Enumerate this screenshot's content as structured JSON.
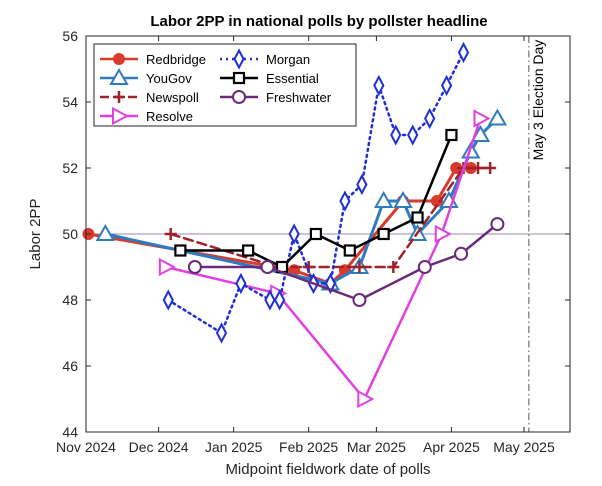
{
  "chart_data": {
    "type": "line",
    "title": "Labor 2PP in national polls by pollster headline",
    "xlabel": "Midpoint fieldwork date of polls",
    "ylabel": "Labor 2PP",
    "xlim": [
      "2024-11-01",
      "2025-05-20"
    ],
    "ylim": [
      44,
      56
    ],
    "x_ticks": [
      {
        "date": "2024-11-01",
        "label": "Nov 2024"
      },
      {
        "date": "2024-12-01",
        "label": "Dec 2024"
      },
      {
        "date": "2025-01-01",
        "label": "Jan 2025"
      },
      {
        "date": "2025-02-01",
        "label": "Feb 2025"
      },
      {
        "date": "2025-03-01",
        "label": "Mar 2025"
      },
      {
        "date": "2025-04-01",
        "label": "Apr 2025"
      },
      {
        "date": "2025-05-01",
        "label": "May 2025"
      }
    ],
    "y_ticks": [
      44,
      46,
      48,
      50,
      52,
      54,
      56
    ],
    "grid": false,
    "legend_position": "top-left",
    "reference_line_y": 50,
    "annotation": {
      "text": "May 3 Election Day",
      "date": "2025-05-03"
    },
    "series": [
      {
        "name": "Redbridge",
        "color": "#d93a2b",
        "marker": "circle",
        "dash": "solid",
        "points": [
          [
            "2024-11-02",
            50.0
          ],
          [
            "2025-01-26",
            48.9
          ],
          [
            "2025-02-10",
            48.5
          ],
          [
            "2025-02-16",
            48.9
          ],
          [
            "2025-03-12",
            51.0
          ],
          [
            "2025-03-26",
            51.0
          ],
          [
            "2025-04-03",
            52.0
          ],
          [
            "2025-04-09",
            52.0
          ]
        ]
      },
      {
        "name": "YouGov",
        "color": "#2f7bbf",
        "marker": "triangle-up",
        "dash": "solid",
        "points": [
          [
            "2024-11-09",
            50.0
          ],
          [
            "2025-02-10",
            48.5
          ],
          [
            "2025-02-22",
            49.0
          ],
          [
            "2025-03-04",
            51.0
          ],
          [
            "2025-03-12",
            51.0
          ],
          [
            "2025-03-18",
            50.0
          ],
          [
            "2025-03-31",
            51.0
          ],
          [
            "2025-04-09",
            52.5
          ],
          [
            "2025-04-13",
            53.0
          ],
          [
            "2025-04-20",
            53.5
          ]
        ]
      },
      {
        "name": "Newspoll",
        "color": "#a0232b",
        "marker": "plus",
        "dash": "dashed",
        "points": [
          [
            "2024-12-06",
            50.0
          ],
          [
            "2025-01-19",
            49.0
          ],
          [
            "2025-02-01",
            49.0
          ],
          [
            "2025-02-22",
            49.0
          ],
          [
            "2025-03-08",
            49.0
          ],
          [
            "2025-04-06",
            52.0
          ],
          [
            "2025-04-12",
            52.0
          ],
          [
            "2025-04-17",
            52.0
          ]
        ]
      },
      {
        "name": "Resolve",
        "color": "#e040e0",
        "marker": "triangle-right",
        "dash": "solid",
        "points": [
          [
            "2024-12-04",
            49.0
          ],
          [
            "2025-01-19",
            48.2
          ],
          [
            "2025-02-24",
            45.0
          ],
          [
            "2025-03-28",
            50.0
          ],
          [
            "2025-04-13",
            53.5
          ]
        ]
      },
      {
        "name": "Morgan",
        "color": "#1f2fd6",
        "marker": "diamond",
        "dash": "dotted",
        "points": [
          [
            "2024-12-05",
            48.0
          ],
          [
            "2024-12-27",
            47.0
          ],
          [
            "2025-01-04",
            48.5
          ],
          [
            "2025-01-16",
            48.0
          ],
          [
            "2025-01-20",
            48.0
          ],
          [
            "2025-01-26",
            50.0
          ],
          [
            "2025-02-03",
            48.5
          ],
          [
            "2025-02-10",
            48.5
          ],
          [
            "2025-02-16",
            51.0
          ],
          [
            "2025-02-23",
            51.5
          ],
          [
            "2025-03-02",
            54.5
          ],
          [
            "2025-03-09",
            53.0
          ],
          [
            "2025-03-16",
            53.0
          ],
          [
            "2025-03-23",
            53.5
          ],
          [
            "2025-03-30",
            54.5
          ],
          [
            "2025-04-06",
            55.5
          ]
        ]
      },
      {
        "name": "Essential",
        "color": "#000000",
        "marker": "square",
        "dash": "solid",
        "points": [
          [
            "2024-12-10",
            49.5
          ],
          [
            "2025-01-07",
            49.5
          ],
          [
            "2025-01-21",
            49.0
          ],
          [
            "2025-02-04",
            50.0
          ],
          [
            "2025-02-18",
            49.5
          ],
          [
            "2025-03-04",
            50.0
          ],
          [
            "2025-03-18",
            50.5
          ],
          [
            "2025-04-01",
            53.0
          ]
        ]
      },
      {
        "name": "Freshwater",
        "color": "#6a2a7a",
        "marker": "circle-open",
        "dash": "solid",
        "points": [
          [
            "2024-12-16",
            49.0
          ],
          [
            "2025-01-15",
            49.0
          ],
          [
            "2025-02-22",
            48.0
          ],
          [
            "2025-03-21",
            49.0
          ],
          [
            "2025-04-05",
            49.4
          ],
          [
            "2025-04-20",
            50.3
          ]
        ]
      }
    ]
  }
}
